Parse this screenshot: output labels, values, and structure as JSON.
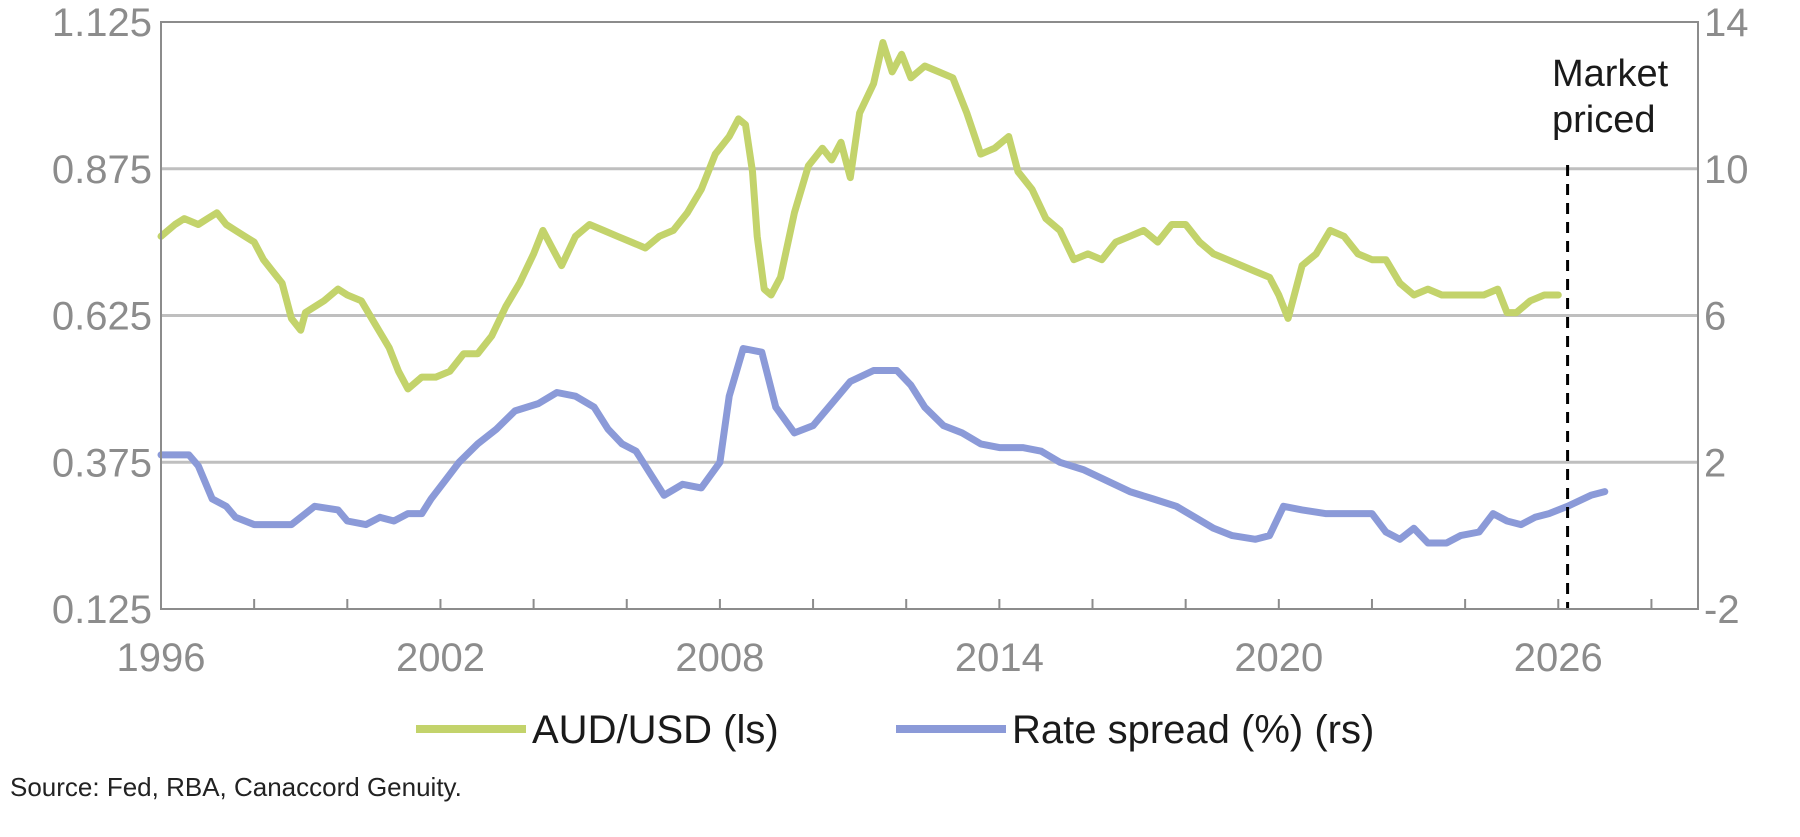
{
  "chart_data": {
    "type": "line",
    "title": "",
    "x_range": [
      1996,
      2029
    ],
    "x_ticks": [
      1996,
      2002,
      2008,
      2014,
      2020,
      2026
    ],
    "left_axis": {
      "range": [
        0.125,
        1.125
      ],
      "ticks": [
        "1.125",
        "0.875",
        "0.625",
        "0.375",
        "0.125"
      ]
    },
    "right_axis": {
      "range": [
        -2,
        14
      ],
      "ticks": [
        "14",
        "10",
        "6",
        "2",
        "-2"
      ]
    },
    "grid": true,
    "series": [
      {
        "name": "AUD/USD (ls)",
        "axis": "left",
        "color": "#c3d36b",
        "points": [
          [
            1996.0,
            0.76
          ],
          [
            1996.3,
            0.78
          ],
          [
            1996.5,
            0.79
          ],
          [
            1996.8,
            0.78
          ],
          [
            1997.0,
            0.79
          ],
          [
            1997.2,
            0.8
          ],
          [
            1997.4,
            0.78
          ],
          [
            1997.6,
            0.77
          ],
          [
            1997.8,
            0.76
          ],
          [
            1998.0,
            0.75
          ],
          [
            1998.2,
            0.72
          ],
          [
            1998.4,
            0.7
          ],
          [
            1998.6,
            0.68
          ],
          [
            1998.8,
            0.62
          ],
          [
            1999.0,
            0.6
          ],
          [
            1999.1,
            0.63
          ],
          [
            1999.3,
            0.64
          ],
          [
            1999.5,
            0.65
          ],
          [
            1999.8,
            0.67
          ],
          [
            2000.0,
            0.66
          ],
          [
            2000.3,
            0.65
          ],
          [
            2000.6,
            0.61
          ],
          [
            2000.9,
            0.57
          ],
          [
            2001.1,
            0.53
          ],
          [
            2001.3,
            0.5
          ],
          [
            2001.6,
            0.52
          ],
          [
            2001.9,
            0.52
          ],
          [
            2002.2,
            0.53
          ],
          [
            2002.5,
            0.56
          ],
          [
            2002.8,
            0.56
          ],
          [
            2003.1,
            0.59
          ],
          [
            2003.4,
            0.64
          ],
          [
            2003.7,
            0.68
          ],
          [
            2004.0,
            0.73
          ],
          [
            2004.2,
            0.77
          ],
          [
            2004.4,
            0.74
          ],
          [
            2004.6,
            0.71
          ],
          [
            2004.9,
            0.76
          ],
          [
            2005.2,
            0.78
          ],
          [
            2005.5,
            0.77
          ],
          [
            2005.8,
            0.76
          ],
          [
            2006.1,
            0.75
          ],
          [
            2006.4,
            0.74
          ],
          [
            2006.7,
            0.76
          ],
          [
            2007.0,
            0.77
          ],
          [
            2007.3,
            0.8
          ],
          [
            2007.6,
            0.84
          ],
          [
            2007.9,
            0.9
          ],
          [
            2008.2,
            0.93
          ],
          [
            2008.4,
            0.96
          ],
          [
            2008.55,
            0.95
          ],
          [
            2008.7,
            0.87
          ],
          [
            2008.8,
            0.76
          ],
          [
            2008.95,
            0.67
          ],
          [
            2009.1,
            0.66
          ],
          [
            2009.3,
            0.69
          ],
          [
            2009.6,
            0.8
          ],
          [
            2009.9,
            0.88
          ],
          [
            2010.2,
            0.91
          ],
          [
            2010.4,
            0.89
          ],
          [
            2010.6,
            0.92
          ],
          [
            2010.8,
            0.86
          ],
          [
            2011.0,
            0.97
          ],
          [
            2011.3,
            1.02
          ],
          [
            2011.5,
            1.09
          ],
          [
            2011.7,
            1.04
          ],
          [
            2011.9,
            1.07
          ],
          [
            2012.1,
            1.03
          ],
          [
            2012.4,
            1.05
          ],
          [
            2012.7,
            1.04
          ],
          [
            2013.0,
            1.03
          ],
          [
            2013.3,
            0.97
          ],
          [
            2013.6,
            0.9
          ],
          [
            2013.9,
            0.91
          ],
          [
            2014.2,
            0.93
          ],
          [
            2014.4,
            0.87
          ],
          [
            2014.7,
            0.84
          ],
          [
            2015.0,
            0.79
          ],
          [
            2015.3,
            0.77
          ],
          [
            2015.6,
            0.72
          ],
          [
            2015.9,
            0.73
          ],
          [
            2016.2,
            0.72
          ],
          [
            2016.5,
            0.75
          ],
          [
            2016.8,
            0.76
          ],
          [
            2017.1,
            0.77
          ],
          [
            2017.4,
            0.75
          ],
          [
            2017.7,
            0.78
          ],
          [
            2018.0,
            0.78
          ],
          [
            2018.3,
            0.75
          ],
          [
            2018.6,
            0.73
          ],
          [
            2018.9,
            0.72
          ],
          [
            2019.2,
            0.71
          ],
          [
            2019.5,
            0.7
          ],
          [
            2019.8,
            0.69
          ],
          [
            2020.0,
            0.66
          ],
          [
            2020.2,
            0.62
          ],
          [
            2020.5,
            0.71
          ],
          [
            2020.8,
            0.73
          ],
          [
            2021.1,
            0.77
          ],
          [
            2021.4,
            0.76
          ],
          [
            2021.7,
            0.73
          ],
          [
            2022.0,
            0.72
          ],
          [
            2022.3,
            0.72
          ],
          [
            2022.6,
            0.68
          ],
          [
            2022.9,
            0.66
          ],
          [
            2023.2,
            0.67
          ],
          [
            2023.5,
            0.66
          ],
          [
            2023.8,
            0.66
          ],
          [
            2024.1,
            0.66
          ],
          [
            2024.4,
            0.66
          ],
          [
            2024.7,
            0.67
          ],
          [
            2024.9,
            0.63
          ],
          [
            2025.1,
            0.63
          ],
          [
            2025.4,
            0.65
          ],
          [
            2025.7,
            0.66
          ],
          [
            2026.0,
            0.66
          ]
        ]
      },
      {
        "name": "Rate spread (%) (rs)",
        "axis": "right",
        "color": "#8b9ad8",
        "points": [
          [
            1996.0,
            2.2
          ],
          [
            1996.6,
            2.2
          ],
          [
            1996.8,
            1.9
          ],
          [
            1997.1,
            1.0
          ],
          [
            1997.4,
            0.8
          ],
          [
            1997.6,
            0.5
          ],
          [
            1998.0,
            0.3
          ],
          [
            1998.5,
            0.3
          ],
          [
            1998.8,
            0.3
          ],
          [
            1999.1,
            0.6
          ],
          [
            1999.3,
            0.8
          ],
          [
            1999.8,
            0.7
          ],
          [
            2000.0,
            0.4
          ],
          [
            2000.4,
            0.3
          ],
          [
            2000.7,
            0.5
          ],
          [
            2001.0,
            0.4
          ],
          [
            2001.3,
            0.6
          ],
          [
            2001.6,
            0.6
          ],
          [
            2001.8,
            1.0
          ],
          [
            2002.1,
            1.5
          ],
          [
            2002.4,
            2.0
          ],
          [
            2002.8,
            2.5
          ],
          [
            2003.2,
            2.9
          ],
          [
            2003.6,
            3.4
          ],
          [
            2004.1,
            3.6
          ],
          [
            2004.5,
            3.9
          ],
          [
            2004.9,
            3.8
          ],
          [
            2005.3,
            3.5
          ],
          [
            2005.6,
            2.9
          ],
          [
            2005.9,
            2.5
          ],
          [
            2006.2,
            2.3
          ],
          [
            2006.5,
            1.7
          ],
          [
            2006.8,
            1.1
          ],
          [
            2007.2,
            1.4
          ],
          [
            2007.6,
            1.3
          ],
          [
            2008.0,
            2.0
          ],
          [
            2008.2,
            3.8
          ],
          [
            2008.5,
            5.1
          ],
          [
            2008.9,
            5.0
          ],
          [
            2009.2,
            3.5
          ],
          [
            2009.6,
            2.8
          ],
          [
            2010.0,
            3.0
          ],
          [
            2010.4,
            3.6
          ],
          [
            2010.8,
            4.2
          ],
          [
            2011.3,
            4.5
          ],
          [
            2011.8,
            4.5
          ],
          [
            2012.1,
            4.1
          ],
          [
            2012.4,
            3.5
          ],
          [
            2012.8,
            3.0
          ],
          [
            2013.2,
            2.8
          ],
          [
            2013.6,
            2.5
          ],
          [
            2014.0,
            2.4
          ],
          [
            2014.5,
            2.4
          ],
          [
            2014.9,
            2.3
          ],
          [
            2015.3,
            2.0
          ],
          [
            2015.8,
            1.8
          ],
          [
            2016.3,
            1.5
          ],
          [
            2016.8,
            1.2
          ],
          [
            2017.3,
            1.0
          ],
          [
            2017.8,
            0.8
          ],
          [
            2018.2,
            0.5
          ],
          [
            2018.6,
            0.2
          ],
          [
            2019.0,
            0.0
          ],
          [
            2019.5,
            -0.1
          ],
          [
            2019.8,
            0.0
          ],
          [
            2020.1,
            0.8
          ],
          [
            2020.5,
            0.7
          ],
          [
            2021.0,
            0.6
          ],
          [
            2021.5,
            0.6
          ],
          [
            2022.0,
            0.6
          ],
          [
            2022.3,
            0.1
          ],
          [
            2022.6,
            -0.1
          ],
          [
            2022.9,
            0.2
          ],
          [
            2023.2,
            -0.2
          ],
          [
            2023.6,
            -0.2
          ],
          [
            2023.9,
            0.0
          ],
          [
            2024.3,
            0.1
          ],
          [
            2024.6,
            0.6
          ],
          [
            2024.9,
            0.4
          ],
          [
            2025.2,
            0.3
          ],
          [
            2025.5,
            0.5
          ],
          [
            2025.8,
            0.6
          ],
          [
            2026.2,
            0.8
          ],
          [
            2026.7,
            1.1
          ],
          [
            2027.0,
            1.2
          ]
        ]
      }
    ],
    "annotation": {
      "text_lines": [
        "Market",
        "priced"
      ],
      "x": 2026.2
    },
    "legend_position": "bottom"
  },
  "footer": {
    "source": "Source: Fed, RBA, Canaccord Genuity."
  }
}
